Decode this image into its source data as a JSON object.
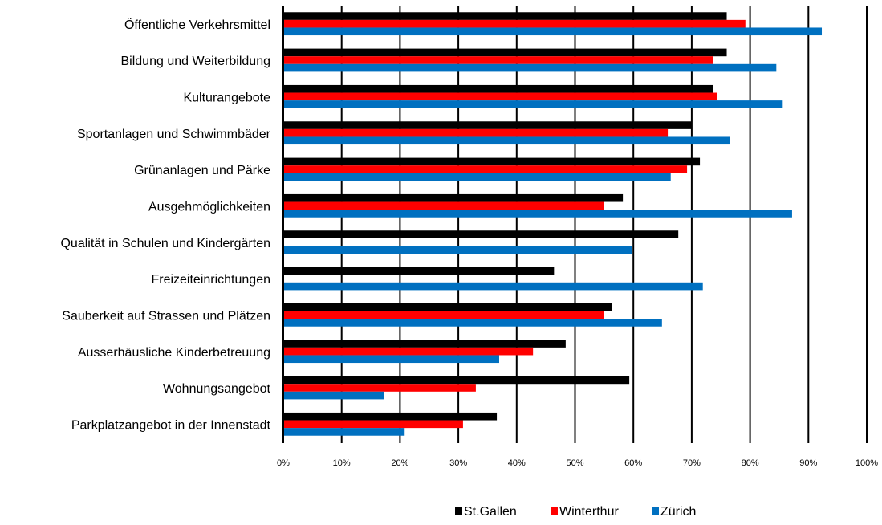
{
  "chart_data": {
    "type": "hbar",
    "categories": [
      "Öffentliche Verkehrsmittel",
      "Bildung und Weiterbildung",
      "Kulturangebote",
      "Sportanlagen und Schwimmbäder",
      "Grünanlagen und Pärke",
      "Ausgehmöglichkeiten",
      "Qualität in Schulen und Kindergärten",
      "Freizeiteinrichtungen",
      "Sauberkeit auf Strassen und Plätzen",
      "Ausserhäusliche Kinderbetreuung",
      "Wohnungsangebot",
      "Parkplatzangebot in der Innenstadt"
    ],
    "series": [
      {
        "name": "St.Gallen",
        "color": "#000000",
        "values": [
          76,
          76,
          73.7,
          69.9,
          71.4,
          58.2,
          67.7,
          46.4,
          56.3,
          48.4,
          59.3,
          36.6
        ]
      },
      {
        "name": "Winterthur",
        "color": "#ff0000",
        "values": [
          79.2,
          73.7,
          74.3,
          65.9,
          69.2,
          54.9,
          null,
          null,
          54.9,
          42.8,
          33,
          30.8
        ]
      },
      {
        "name": "Zürich",
        "color": "#0070c0",
        "values": [
          92.3,
          84.5,
          85.6,
          76.6,
          66.4,
          87.2,
          59.8,
          71.9,
          64.9,
          37,
          17.2,
          20.8
        ]
      }
    ],
    "xlim": [
      0,
      100
    ],
    "xticks": [
      {
        "value": 0,
        "label": "0%"
      },
      {
        "value": 10,
        "label": "10%"
      },
      {
        "value": 20,
        "label": "20%"
      },
      {
        "value": 30,
        "label": "30%"
      },
      {
        "value": 40,
        "label": "40%"
      },
      {
        "value": 50,
        "label": "50%"
      },
      {
        "value": 60,
        "label": "60%"
      },
      {
        "value": 70,
        "label": "70%"
      },
      {
        "value": 80,
        "label": "80%"
      },
      {
        "value": 90,
        "label": "90%"
      },
      {
        "value": 100,
        "label": "100%"
      }
    ],
    "grid": true,
    "legend": "bottom"
  }
}
